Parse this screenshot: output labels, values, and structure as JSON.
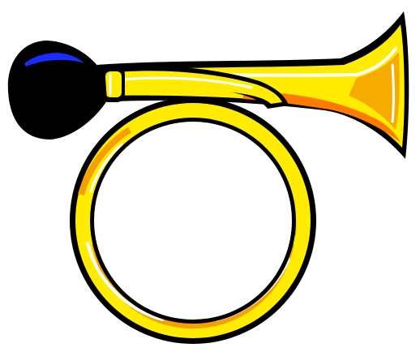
{
  "image": {
    "subject": "bulb horn",
    "colors": {
      "outline": "#000000",
      "brass": "#ffec00",
      "brass_shadow": "#f5a000",
      "brass_deep": "#ff7a00",
      "highlight": "#ffffff",
      "bulb": "#000000",
      "bulb_shine": "#1a2cff",
      "background": "#ffffff"
    }
  }
}
